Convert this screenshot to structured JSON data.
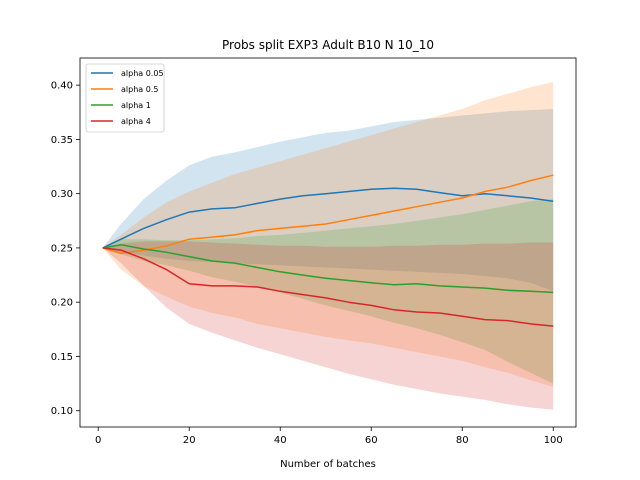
{
  "chart_data": {
    "type": "line",
    "title": "Probs split EXP3 Adult B10 N 10_10",
    "xlabel": "Number of batches",
    "ylabel": "",
    "xlim": [
      -4,
      105
    ],
    "ylim": [
      0.085,
      0.425
    ],
    "xticks": [
      0,
      20,
      40,
      60,
      80,
      100
    ],
    "yticks": [
      0.1,
      0.15,
      0.2,
      0.25,
      0.3,
      0.35,
      0.4
    ],
    "ytick_labels": [
      "0.10",
      "0.15",
      "0.20",
      "0.25",
      "0.30",
      "0.35",
      "0.40"
    ],
    "grid": false,
    "legend_position": "top-left",
    "series": [
      {
        "name": "alpha 0.05",
        "color": "#1f77b4",
        "x": [
          1,
          5,
          10,
          15,
          20,
          25,
          30,
          35,
          40,
          45,
          50,
          55,
          60,
          65,
          70,
          75,
          80,
          85,
          90,
          95,
          100
        ],
        "y": [
          0.25,
          0.258,
          0.268,
          0.276,
          0.283,
          0.286,
          0.287,
          0.291,
          0.295,
          0.298,
          0.3,
          0.302,
          0.304,
          0.305,
          0.304,
          0.301,
          0.298,
          0.3,
          0.298,
          0.296,
          0.293
        ],
        "lower": [
          0.25,
          0.246,
          0.243,
          0.24,
          0.238,
          0.237,
          0.236,
          0.235,
          0.234,
          0.233,
          0.232,
          0.231,
          0.23,
          0.229,
          0.228,
          0.227,
          0.226,
          0.224,
          0.222,
          0.218,
          0.21
        ],
        "upper": [
          0.25,
          0.272,
          0.295,
          0.312,
          0.326,
          0.334,
          0.338,
          0.343,
          0.348,
          0.352,
          0.356,
          0.358,
          0.362,
          0.366,
          0.368,
          0.37,
          0.372,
          0.374,
          0.376,
          0.377,
          0.378
        ]
      },
      {
        "name": "alpha 0.5",
        "color": "#ff7f0e",
        "x": [
          1,
          5,
          10,
          15,
          20,
          25,
          30,
          35,
          40,
          45,
          50,
          55,
          60,
          65,
          70,
          75,
          80,
          85,
          90,
          95,
          100
        ],
        "y": [
          0.25,
          0.245,
          0.248,
          0.252,
          0.258,
          0.26,
          0.262,
          0.266,
          0.268,
          0.27,
          0.272,
          0.276,
          0.28,
          0.284,
          0.288,
          0.292,
          0.296,
          0.302,
          0.306,
          0.312,
          0.317
        ],
        "lower": [
          0.25,
          0.23,
          0.215,
          0.205,
          0.196,
          0.19,
          0.186,
          0.18,
          0.176,
          0.172,
          0.168,
          0.165,
          0.162,
          0.158,
          0.154,
          0.15,
          0.146,
          0.14,
          0.135,
          0.128,
          0.122
        ],
        "upper": [
          0.25,
          0.262,
          0.278,
          0.292,
          0.302,
          0.31,
          0.318,
          0.324,
          0.33,
          0.336,
          0.342,
          0.348,
          0.354,
          0.36,
          0.366,
          0.372,
          0.378,
          0.386,
          0.392,
          0.398,
          0.403
        ]
      },
      {
        "name": "alpha 1",
        "color": "#2ca02c",
        "x": [
          1,
          5,
          10,
          15,
          20,
          25,
          30,
          35,
          40,
          45,
          50,
          55,
          60,
          65,
          70,
          75,
          80,
          85,
          90,
          95,
          100
        ],
        "y": [
          0.25,
          0.253,
          0.249,
          0.246,
          0.242,
          0.238,
          0.236,
          0.232,
          0.228,
          0.225,
          0.222,
          0.22,
          0.218,
          0.216,
          0.217,
          0.215,
          0.214,
          0.213,
          0.211,
          0.21,
          0.209
        ],
        "lower": [
          0.25,
          0.244,
          0.238,
          0.234,
          0.229,
          0.223,
          0.219,
          0.214,
          0.209,
          0.203,
          0.197,
          0.192,
          0.187,
          0.181,
          0.176,
          0.17,
          0.163,
          0.156,
          0.145,
          0.135,
          0.125
        ],
        "upper": [
          0.25,
          0.258,
          0.258,
          0.257,
          0.257,
          0.258,
          0.259,
          0.261,
          0.262,
          0.264,
          0.266,
          0.268,
          0.27,
          0.272,
          0.275,
          0.278,
          0.281,
          0.285,
          0.289,
          0.293,
          0.295
        ]
      },
      {
        "name": "alpha 4",
        "color": "#d62728",
        "x": [
          1,
          5,
          10,
          15,
          20,
          25,
          30,
          35,
          40,
          45,
          50,
          55,
          60,
          65,
          70,
          75,
          80,
          85,
          90,
          95,
          100
        ],
        "y": [
          0.25,
          0.248,
          0.24,
          0.23,
          0.217,
          0.215,
          0.215,
          0.214,
          0.21,
          0.207,
          0.204,
          0.2,
          0.197,
          0.193,
          0.191,
          0.19,
          0.187,
          0.184,
          0.183,
          0.18,
          0.178
        ],
        "lower": [
          0.25,
          0.236,
          0.215,
          0.195,
          0.18,
          0.172,
          0.165,
          0.158,
          0.152,
          0.146,
          0.14,
          0.134,
          0.129,
          0.124,
          0.12,
          0.116,
          0.113,
          0.11,
          0.106,
          0.103,
          0.101
        ],
        "upper": [
          0.25,
          0.254,
          0.256,
          0.256,
          0.256,
          0.255,
          0.254,
          0.253,
          0.252,
          0.252,
          0.251,
          0.251,
          0.251,
          0.252,
          0.252,
          0.253,
          0.253,
          0.254,
          0.254,
          0.255,
          0.255
        ]
      }
    ]
  }
}
